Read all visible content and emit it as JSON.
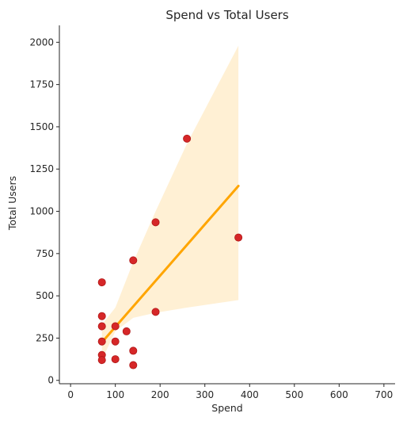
{
  "chart_data": {
    "type": "scatter",
    "title": "Spend vs Total Users",
    "xlabel": "Spend",
    "ylabel": "Total Users",
    "xlim": [
      -25,
      725
    ],
    "ylim": [
      -20,
      2100
    ],
    "xticks": [
      0,
      100,
      200,
      300,
      400,
      500,
      600,
      700
    ],
    "yticks": [
      0,
      250,
      500,
      750,
      1000,
      1250,
      1500,
      1750,
      2000
    ],
    "grid": false,
    "series": [
      {
        "type": "scatter",
        "color": "#d62728",
        "points": [
          {
            "x": 70,
            "y": 580
          },
          {
            "x": 70,
            "y": 380
          },
          {
            "x": 70,
            "y": 320
          },
          {
            "x": 70,
            "y": 230
          },
          {
            "x": 70,
            "y": 150
          },
          {
            "x": 70,
            "y": 120
          },
          {
            "x": 100,
            "y": 320
          },
          {
            "x": 100,
            "y": 230
          },
          {
            "x": 100,
            "y": 125
          },
          {
            "x": 125,
            "y": 290
          },
          {
            "x": 140,
            "y": 710
          },
          {
            "x": 140,
            "y": 175
          },
          {
            "x": 140,
            "y": 90
          },
          {
            "x": 190,
            "y": 935
          },
          {
            "x": 190,
            "y": 405
          },
          {
            "x": 260,
            "y": 1430
          },
          {
            "x": 375,
            "y": 845
          }
        ]
      },
      {
        "type": "line",
        "color": "#ffa500",
        "x": [
          70,
          375
        ],
        "y": [
          225,
          1150
        ]
      },
      {
        "type": "area",
        "color": "#ffa500",
        "opacity": 0.17,
        "x": [
          70,
          100,
          140,
          190,
          260,
          375
        ],
        "lower": [
          120,
          290,
          370,
          400,
          430,
          475
        ],
        "upper": [
          330,
          430,
          700,
          1000,
          1400,
          1980
        ]
      }
    ]
  }
}
